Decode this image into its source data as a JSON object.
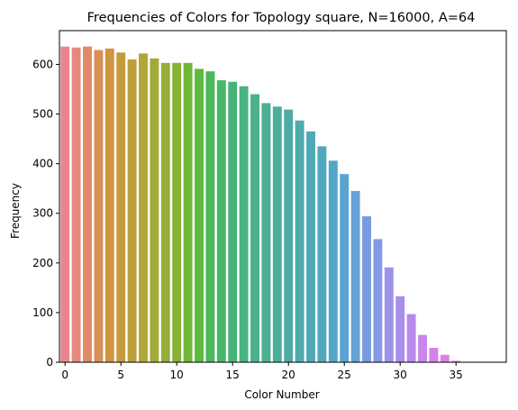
{
  "chart_data": {
    "type": "bar",
    "title": "Frequencies of Colors for Topology square, N=16000, A=64",
    "xlabel": "Color Number",
    "ylabel": "Frequency",
    "categories": [
      0,
      1,
      2,
      3,
      4,
      5,
      6,
      7,
      8,
      9,
      10,
      11,
      12,
      13,
      14,
      15,
      16,
      17,
      18,
      19,
      20,
      21,
      22,
      23,
      24,
      25,
      26,
      27,
      28,
      29,
      30,
      31,
      32,
      33,
      34,
      35,
      36,
      37,
      38,
      39
    ],
    "values": [
      636,
      634,
      636,
      629,
      632,
      624,
      610,
      622,
      612,
      603,
      603,
      603,
      591,
      586,
      568,
      565,
      556,
      540,
      522,
      515,
      509,
      487,
      465,
      435,
      406,
      379,
      345,
      294,
      248,
      191,
      133,
      97,
      55,
      29,
      15,
      3,
      1,
      1,
      1,
      1
    ],
    "colors": [
      "#e8868e",
      "#e5887d",
      "#e08a68",
      "#d98f55",
      "#d1943f",
      "#c79a3c",
      "#bea03a",
      "#b1a63a",
      "#a3aa39",
      "#94ae38",
      "#84b238",
      "#71b638",
      "#5bba3f",
      "#49b95a",
      "#46b76b",
      "#47b477",
      "#49b281",
      "#4ab18a",
      "#4baf93",
      "#4cad9b",
      "#4daba4",
      "#4eaaad",
      "#4fa9b5",
      "#50a8be",
      "#52a6c7",
      "#58a3d0",
      "#66a0d8",
      "#769cdf",
      "#8799e3",
      "#9b93e7",
      "#aa8eea",
      "#b889eb",
      "#c985eb",
      "#d581e9",
      "#de7fe2",
      "#e37dd8",
      "#e77fcd",
      "#e881c1",
      "#e983b4",
      "#e985a5"
    ],
    "xticks": [
      0,
      5,
      10,
      15,
      20,
      25,
      30,
      35
    ],
    "yticks": [
      0,
      100,
      200,
      300,
      400,
      500,
      600
    ],
    "xlim": [
      -0.5,
      39.5
    ],
    "ylim": [
      0,
      668
    ],
    "grid": false,
    "legend": "none"
  }
}
